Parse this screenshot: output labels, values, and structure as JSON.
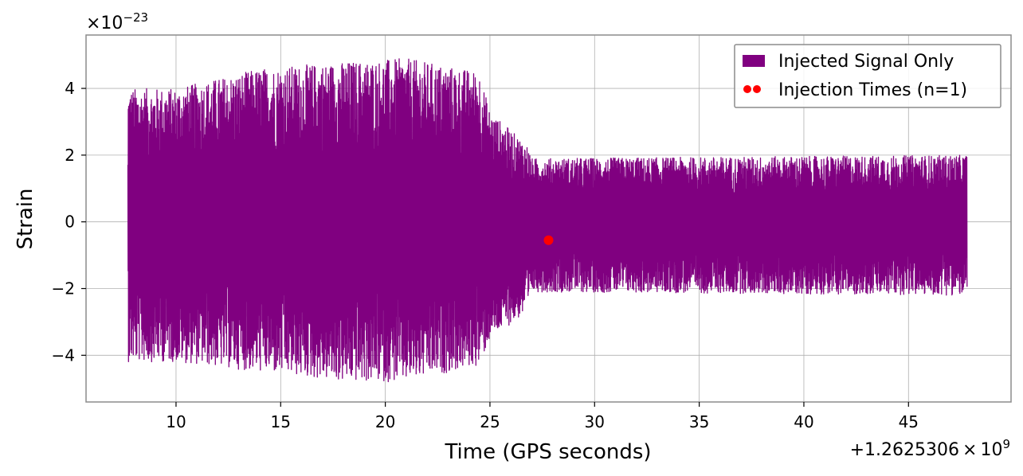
{
  "chart_data": {
    "type": "line",
    "xlabel": "Time (GPS seconds)",
    "ylabel": "Strain",
    "x_offset_label": "+1.2625306",
    "x_offset_times": "×",
    "x_offset_base": "10",
    "x_offset_exp": "9",
    "y_scale_prefix": "×10",
    "y_scale_exp": "−23",
    "xlim": [
      5.7,
      49.9
    ],
    "ylim": [
      -5.4,
      5.6
    ],
    "x_ticks": [
      {
        "value": 10,
        "label": "10"
      },
      {
        "value": 15,
        "label": "15"
      },
      {
        "value": 20,
        "label": "20"
      },
      {
        "value": 25,
        "label": "25"
      },
      {
        "value": 30,
        "label": "30"
      },
      {
        "value": 35,
        "label": "35"
      },
      {
        "value": 40,
        "label": "40"
      },
      {
        "value": 45,
        "label": "45"
      }
    ],
    "y_ticks": [
      {
        "value": 4,
        "label": "4"
      },
      {
        "value": 2,
        "label": "2"
      },
      {
        "value": 0,
        "label": "0"
      },
      {
        "value": -2,
        "label": "−2"
      },
      {
        "value": -4,
        "label": "−4"
      }
    ],
    "grid": true,
    "legend_position": "top-right",
    "series": [
      {
        "name": "Injected Signal Only",
        "kind": "line",
        "color": "#800080",
        "x_range": [
          7.7,
          47.8
        ],
        "envelope": [
          {
            "x": 7.7,
            "upper": 4.0,
            "lower": -4.2
          },
          {
            "x": 10.0,
            "upper": 4.0,
            "lower": -4.2
          },
          {
            "x": 14.0,
            "upper": 4.6,
            "lower": -4.5
          },
          {
            "x": 18.0,
            "upper": 4.8,
            "lower": -4.8
          },
          {
            "x": 21.0,
            "upper": 4.9,
            "lower": -4.8
          },
          {
            "x": 24.5,
            "upper": 4.5,
            "lower": -4.3
          },
          {
            "x": 25.0,
            "upper": 3.3,
            "lower": -3.5
          },
          {
            "x": 26.8,
            "upper": 2.3,
            "lower": -2.7
          },
          {
            "x": 27.0,
            "upper": 1.9,
            "lower": -2.1
          },
          {
            "x": 47.8,
            "upper": 2.0,
            "lower": -2.2
          }
        ]
      },
      {
        "name": "Injection Times (n=1)",
        "kind": "scatter",
        "color": "#ff0000",
        "points": [
          {
            "x": 27.8,
            "y": -0.55
          }
        ]
      }
    ]
  }
}
